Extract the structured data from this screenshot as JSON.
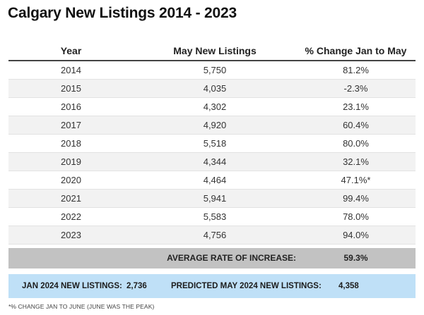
{
  "title": "Calgary New Listings 2014 - 2023",
  "table": {
    "headers": [
      "Year",
      "May New Listings",
      "% Change Jan to May"
    ],
    "rows": [
      [
        "2014",
        "5,750",
        "81.2%"
      ],
      [
        "2015",
        "4,035",
        "-2.3%"
      ],
      [
        "2016",
        "4,302",
        "23.1%"
      ],
      [
        "2017",
        "4,920",
        "60.4%"
      ],
      [
        "2018",
        "5,518",
        "80.0%"
      ],
      [
        "2019",
        "4,344",
        "32.1%"
      ],
      [
        "2020",
        "4,464",
        "47.1%*"
      ],
      [
        "2021",
        "5,941",
        "99.4%"
      ],
      [
        "2022",
        "5,583",
        "78.0%"
      ],
      [
        "2023",
        "4,756",
        "94.0%"
      ]
    ]
  },
  "average": {
    "label": "AVERAGE RATE OF INCREASE:",
    "value": "59.3%"
  },
  "prediction": {
    "jan_label": "JAN 2024 NEW LISTINGS:",
    "jan_value": "2,736",
    "may_label": "PREDICTED MAY 2024 NEW LISTINGS:",
    "may_value": "4,358"
  },
  "footnote": "*% CHANGE JAN TO JUNE (JUNE WAS THE PEAK)",
  "colors": {
    "average_bar": "#c2c2c2",
    "prediction_bar": "#bfe0f7",
    "alt_row": "#f2f2f2"
  }
}
